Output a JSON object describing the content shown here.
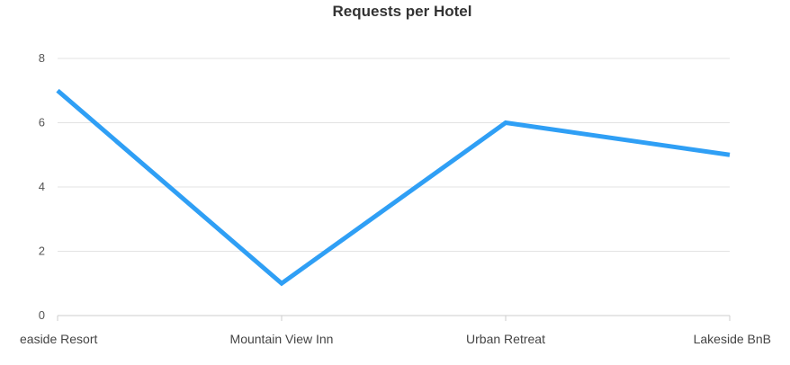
{
  "chart_data": {
    "type": "line",
    "title": "Requests per Hotel",
    "xlabel": "",
    "ylabel": "",
    "categories": [
      "Seaside Resort",
      "Mountain View Inn",
      "Urban Retreat",
      "Lakeside BnB"
    ],
    "category_labels_visible": [
      "easide Resort",
      "Mountain View Inn",
      "Urban Retreat",
      "Lakeside BnB"
    ],
    "series": [
      {
        "values": [
          7,
          1,
          6,
          5
        ],
        "color": "#2f9ff5"
      }
    ],
    "ylim": [
      0,
      8
    ],
    "yticks": [
      0,
      2,
      4,
      6,
      8
    ],
    "grid": true,
    "legend": "none"
  }
}
